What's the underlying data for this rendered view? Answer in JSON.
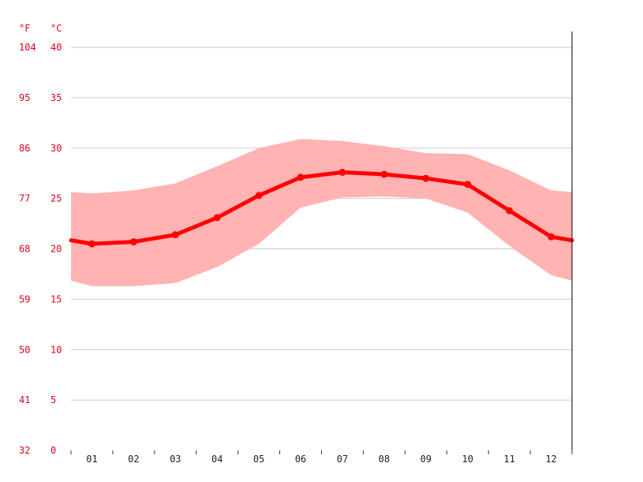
{
  "chart_data": {
    "type": "line",
    "unit_f": "°F",
    "unit_c": "°C",
    "categories": [
      "01",
      "02",
      "03",
      "04",
      "05",
      "06",
      "07",
      "08",
      "09",
      "10",
      "11",
      "12"
    ],
    "y_ticks_c": [
      0,
      5,
      10,
      15,
      20,
      25,
      30,
      35,
      40
    ],
    "y_ticks_f": [
      32,
      41,
      50,
      59,
      68,
      77,
      86,
      95,
      104
    ],
    "ylim": [
      0,
      40
    ],
    "grid": true,
    "series": [
      {
        "values": [
          20.5,
          20.7,
          21.4,
          23.1,
          25.3,
          27.1,
          27.6,
          27.4,
          27.0,
          26.4,
          23.8,
          21.2
        ]
      }
    ],
    "band": {
      "upper": [
        25.5,
        25.8,
        26.5,
        28.2,
        30.0,
        30.9,
        30.7,
        30.2,
        29.5,
        29.4,
        27.8,
        25.8
      ],
      "lower": [
        16.3,
        16.3,
        16.6,
        18.2,
        20.5,
        24.1,
        25.1,
        25.2,
        25.0,
        23.6,
        20.3,
        17.4
      ]
    },
    "colors": {
      "line": "#ff0000",
      "band": "#ffb3b3",
      "labels": "#e0001a",
      "grid": "#cccccc"
    }
  }
}
